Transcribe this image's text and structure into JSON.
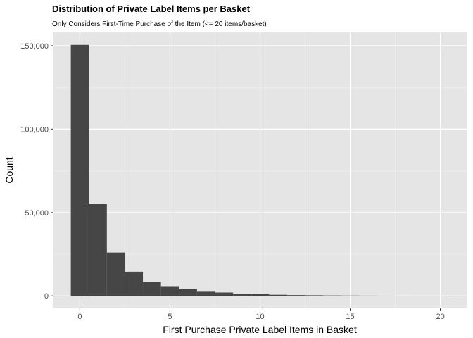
{
  "chart_data": {
    "type": "bar",
    "title": "Distribution of Private Label Items per Basket",
    "subtitle": "Only Considers First-Time Purchase of the Item (<= 20 items/basket)",
    "xlabel": "First Purchase Private Label Items in Basket",
    "ylabel": "Count",
    "x": [
      0,
      1,
      2,
      3,
      4,
      5,
      6,
      7,
      8,
      9,
      10,
      11,
      12,
      13,
      14,
      15,
      16,
      17,
      18,
      19,
      20
    ],
    "values": [
      150500,
      55000,
      26000,
      14500,
      8500,
      5800,
      4000,
      2900,
      2000,
      1300,
      1000,
      650,
      450,
      350,
      250,
      200,
      150,
      120,
      90,
      50,
      30
    ],
    "xlim": [
      -1.5,
      21.5
    ],
    "ylim": [
      -7500,
      158000
    ],
    "x_ticks": [
      0,
      5,
      10,
      15,
      20
    ],
    "x_tick_labels": [
      "0",
      "5",
      "10",
      "15",
      "20"
    ],
    "y_ticks": [
      0,
      50000,
      100000,
      150000
    ],
    "y_tick_labels": [
      "0",
      "50,000",
      "100,000",
      "150,000"
    ],
    "grid": true,
    "legend": "none",
    "colors": {
      "bar": "#464646",
      "panel": "#e5e5e5",
      "grid_major": "#ffffff",
      "grid_minor": "#f2f2f2"
    }
  }
}
